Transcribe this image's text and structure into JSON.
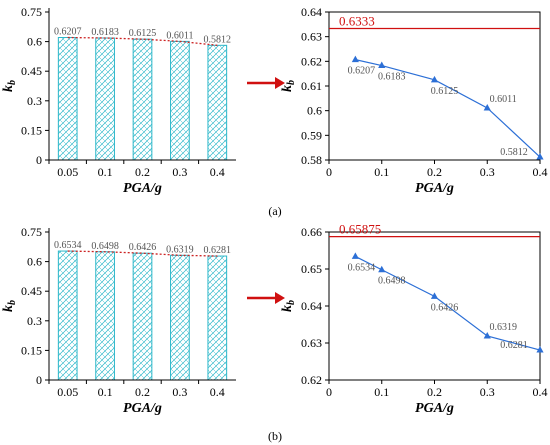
{
  "colors": {
    "bar_stroke": "#2bb7c9",
    "bar_hatch": "#2bb7c9",
    "trend": "#cc2222",
    "line": "#2c6fd6",
    "reference": "#d01010",
    "arrow": "#d01010",
    "axis": "#000000"
  },
  "panel_labels": [
    "(a)",
    "(b)"
  ],
  "chart_data": [
    {
      "type": "bar",
      "panel": "a",
      "categories": [
        "0.05",
        "0.1",
        "0.2",
        "0.3",
        "0.4"
      ],
      "values": [
        0.6207,
        0.6183,
        0.6125,
        0.6011,
        0.5812
      ],
      "data_labels": [
        "0.6207",
        "0.6183",
        "0.6125",
        "0.6011",
        "0.5812"
      ],
      "xlabel": "PGA/g",
      "ylabel": "kb",
      "ylim": [
        0,
        0.75
      ],
      "yticks": [
        "0",
        "0.15",
        "0.3",
        "0.45",
        "0.6",
        "0.75"
      ],
      "trend_line": "dotted",
      "grid": false
    },
    {
      "type": "line",
      "panel": "a",
      "x": [
        0.05,
        0.1,
        0.2,
        0.3,
        0.4
      ],
      "y": [
        0.6207,
        0.6183,
        0.6125,
        0.6011,
        0.5812
      ],
      "data_labels": [
        "0.6207",
        "0.6183",
        "0.6125",
        "0.6011",
        "0.5812"
      ],
      "xlabel": "PGA/g",
      "ylabel": "kb",
      "xlim": [
        0,
        0.4
      ],
      "ylim": [
        0.58,
        0.64
      ],
      "xticks": [
        "0",
        "0.1",
        "0.2",
        "0.3",
        "0.4"
      ],
      "yticks": [
        "0.58",
        "0.59",
        "0.6",
        "0.61",
        "0.62",
        "0.63",
        "0.64"
      ],
      "reference_value": 0.6333,
      "reference_label": "0.6333",
      "marker": "triangle",
      "grid": false
    },
    {
      "type": "bar",
      "panel": "b",
      "categories": [
        "0.05",
        "0.1",
        "0.2",
        "0.3",
        "0.4"
      ],
      "values": [
        0.6534,
        0.6498,
        0.6426,
        0.6319,
        0.6281
      ],
      "data_labels": [
        "0.6534",
        "0.6498",
        "0.6426",
        "0.6319",
        "0.6281"
      ],
      "xlabel": "PGA/g",
      "ylabel": "kb",
      "ylim": [
        0,
        0.75
      ],
      "yticks": [
        "0",
        "0.15",
        "0.3",
        "0.45",
        "0.6",
        "0.75"
      ],
      "trend_line": "dotted",
      "grid": false
    },
    {
      "type": "line",
      "panel": "b",
      "x": [
        0.05,
        0.1,
        0.2,
        0.3,
        0.4
      ],
      "y": [
        0.6534,
        0.6498,
        0.6426,
        0.6319,
        0.6281
      ],
      "data_labels": [
        "0.6534",
        "0.6498",
        "0.6426",
        "0.6319",
        "0.6281"
      ],
      "xlabel": "PGA/g",
      "ylabel": "kb",
      "xlim": [
        0,
        0.4
      ],
      "ylim": [
        0.62,
        0.66
      ],
      "xticks": [
        "0",
        "0.1",
        "0.2",
        "0.3",
        "0.4"
      ],
      "yticks": [
        "0.62",
        "0.63",
        "0.64",
        "0.65",
        "0.66"
      ],
      "reference_value": 0.65875,
      "reference_label": "0.65875",
      "marker": "triangle",
      "grid": false
    }
  ]
}
